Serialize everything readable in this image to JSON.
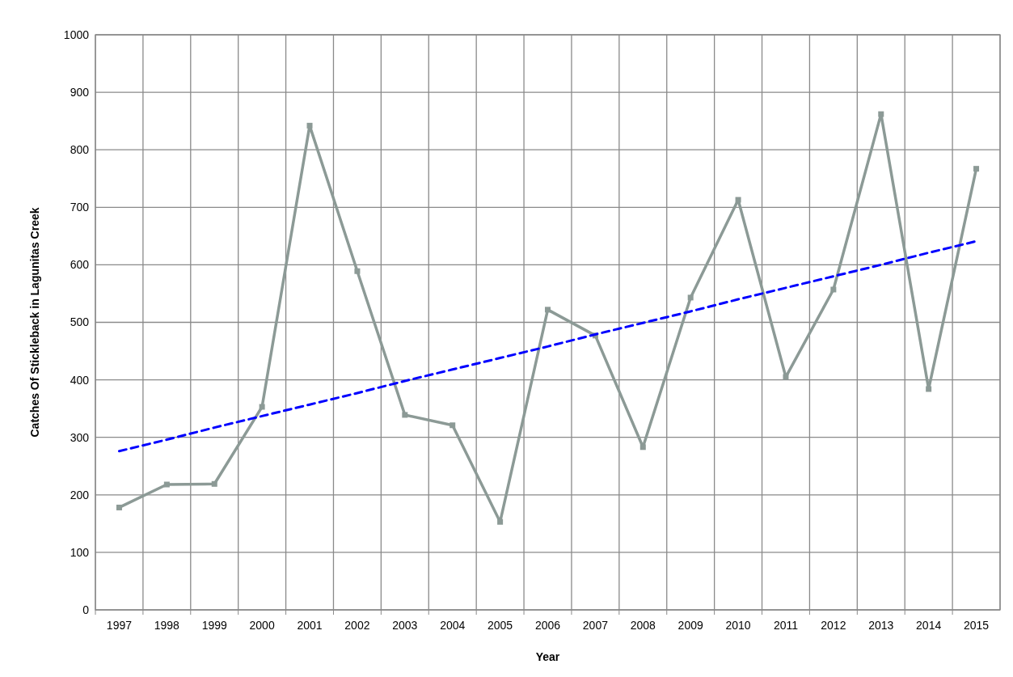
{
  "chart_data": {
    "type": "line",
    "xlabel": "Year",
    "ylabel": "Catches Of Stickleback in Lagunitas Creek",
    "categories": [
      "1997",
      "1998",
      "1999",
      "2000",
      "2001",
      "2002",
      "2003",
      "2004",
      "2005",
      "2006",
      "2007",
      "2008",
      "2009",
      "2010",
      "2011",
      "2012",
      "2013",
      "2014",
      "2015"
    ],
    "series": [
      {
        "color": "#8c9a96",
        "marker": "square",
        "values": [
          178,
          218,
          219,
          353,
          842,
          589,
          339,
          321,
          153,
          522,
          477,
          283,
          543,
          713,
          405,
          557,
          862,
          384,
          767
        ]
      },
      {
        "type": "line",
        "color": "#0000ff",
        "line_style": "dashed",
        "marker": "none",
        "values": [
          276,
          296,
          317,
          337,
          357,
          377,
          398,
          418,
          438,
          458,
          479,
          499,
          519,
          540,
          560,
          580,
          600,
          621,
          641
        ]
      }
    ],
    "ylim": [
      0,
      1000
    ],
    "yticks": [
      0,
      100,
      200,
      300,
      400,
      500,
      600,
      700,
      800,
      900,
      1000
    ],
    "grid": true
  }
}
